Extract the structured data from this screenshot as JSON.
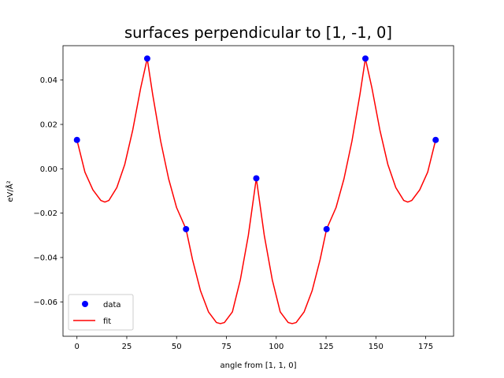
{
  "chart_data": {
    "type": "line",
    "title": "surfaces perpendicular to [1, -1, 0]",
    "xlabel": "angle from [1, 1, 0]",
    "ylabel": "eV/Å²",
    "xlim": [
      -7,
      189
    ],
    "ylim": [
      -0.0755,
      0.0555
    ],
    "x_ticks": [
      0,
      25,
      50,
      75,
      100,
      125,
      150,
      175
    ],
    "y_ticks": [
      -0.06,
      -0.04,
      -0.02,
      0.0,
      0.02,
      0.04
    ],
    "y_tick_labels": [
      "−0.06",
      "−0.04",
      "−0.02",
      "0.00",
      "0.02",
      "0.04"
    ],
    "grid": false,
    "legend_position": "lower-left",
    "series": [
      {
        "name": "data",
        "kind": "scatter",
        "color": "#0000ff",
        "x": [
          0,
          35.26,
          54.74,
          90,
          125.26,
          144.74,
          180
        ],
        "y": [
          0.013,
          0.0497,
          -0.0272,
          -0.0043,
          -0.0272,
          0.0497,
          0.013
        ]
      },
      {
        "name": "fit",
        "kind": "line",
        "color": "#ff0000",
        "x": [
          0,
          4,
          8,
          12,
          14,
          16,
          20,
          24,
          28,
          32,
          35.26,
          38,
          42,
          46,
          50,
          54.74,
          58,
          62,
          66,
          70,
          72,
          74,
          78,
          82,
          86,
          90,
          94,
          98,
          102,
          106,
          108,
          110,
          114,
          118,
          122,
          125.26,
          130,
          134,
          138,
          142,
          144.74,
          148,
          152,
          156,
          160,
          164,
          166,
          168,
          172,
          176,
          180
        ],
        "y": [
          0.013,
          -0.0015,
          -0.0095,
          -0.0143,
          -0.015,
          -0.0143,
          -0.0085,
          0.002,
          0.0175,
          0.0365,
          0.0497,
          0.0335,
          0.0125,
          -0.0045,
          -0.0175,
          -0.0272,
          -0.041,
          -0.055,
          -0.0645,
          -0.0693,
          -0.0698,
          -0.0693,
          -0.0645,
          -0.05,
          -0.03,
          -0.0043,
          -0.03,
          -0.05,
          -0.0645,
          -0.0693,
          -0.0698,
          -0.0693,
          -0.0645,
          -0.055,
          -0.041,
          -0.0272,
          -0.0175,
          -0.0045,
          0.0125,
          0.0335,
          0.0497,
          0.0365,
          0.0175,
          0.002,
          -0.0085,
          -0.0143,
          -0.015,
          -0.0143,
          -0.0095,
          -0.0015,
          0.013
        ]
      }
    ]
  }
}
